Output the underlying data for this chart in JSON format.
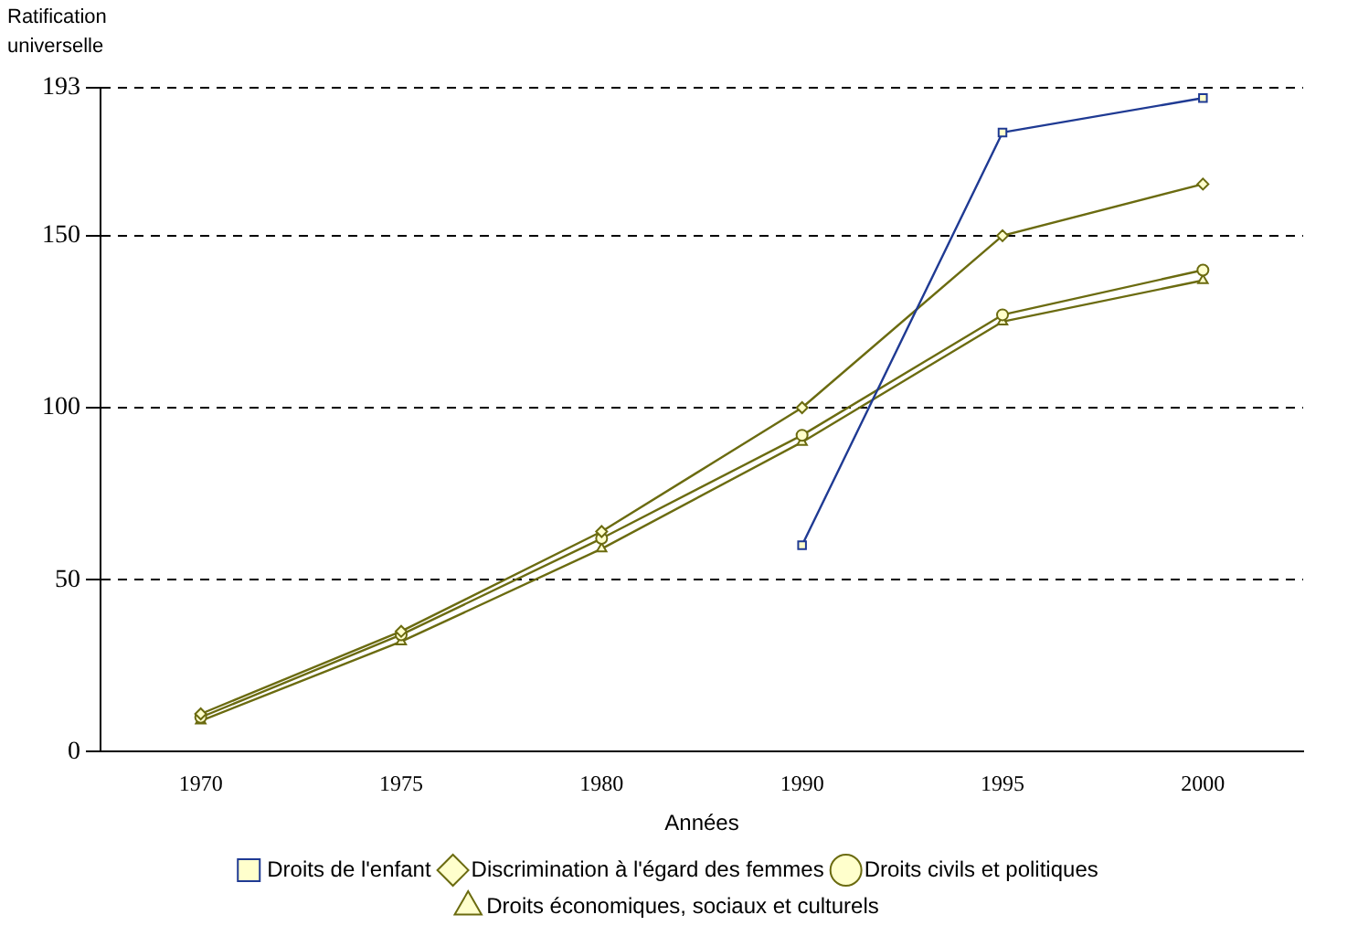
{
  "chart_data": {
    "type": "line",
    "ylabel": "Ratification universelle",
    "xlabel": "Années",
    "categories": [
      "1970",
      "1975",
      "1980",
      "1990",
      "1995",
      "2000"
    ],
    "ylim": [
      0,
      193
    ],
    "yticks": [
      0,
      50,
      100,
      150,
      193
    ],
    "grid": "y",
    "legend": "bottom",
    "series": [
      {
        "name": "Droits de l'enfant",
        "color": "#1f3a93",
        "marker": "square",
        "values": [
          null,
          null,
          null,
          60,
          180,
          190
        ]
      },
      {
        "name": "Discrimination à l'égard des femmes",
        "color": "#6b6b10",
        "marker": "diamond",
        "values": [
          11,
          35,
          64,
          100,
          150,
          165
        ]
      },
      {
        "name": "Droits civils et politiques",
        "color": "#6b6b10",
        "marker": "circle",
        "values": [
          10,
          34,
          62,
          92,
          127,
          140
        ]
      },
      {
        "name": "Droits économiques, sociaux et culturels",
        "color": "#6b6b10",
        "marker": "triangle",
        "values": [
          9,
          32,
          59,
          90,
          125,
          137
        ]
      }
    ]
  }
}
